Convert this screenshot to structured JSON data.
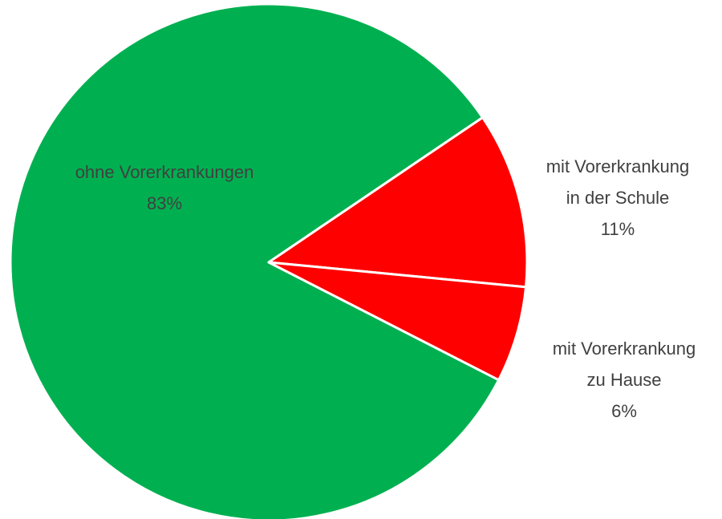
{
  "chart_data": {
    "type": "pie",
    "categories": [
      "ohne Vorerkrankungen",
      "mit Vorerkrankung\nin der Schule",
      "mit Vorerkrankung\nzu Hause"
    ],
    "values": [
      83,
      11,
      6
    ],
    "value_labels": [
      "83%",
      "11%",
      "6%"
    ],
    "colors": [
      "#00b050",
      "#ff0000",
      "#ff0000"
    ]
  }
}
